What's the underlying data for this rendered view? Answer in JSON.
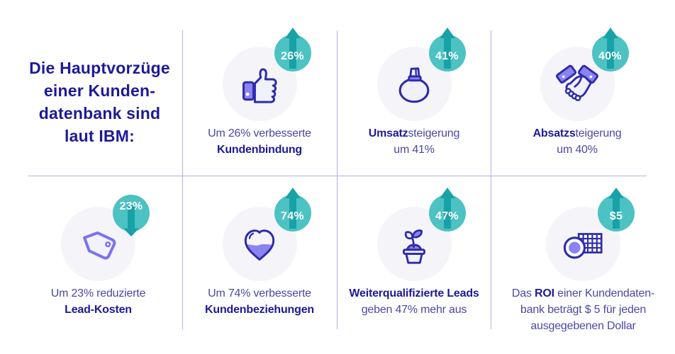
{
  "page": {
    "background": "#ffffff",
    "source_claim": "laut IBM"
  },
  "colors": {
    "title_navy": "#1d1a96",
    "caption_purple": "#4b48a5",
    "divider": "#b5b1de",
    "badge_teal": "#4cc2c3",
    "badge_arrow_teal": "#18a2a8",
    "icon_outline_navy": "#2e2caa",
    "icon_purple": "#8a83f1",
    "icon_light_fill": "#f0f1fb",
    "icon_circle_bg": "#f5f5f9",
    "tag_purple": "#7b72ee"
  },
  "title": {
    "lines": [
      "Die Hauptvorzüge",
      "einer Kunden-",
      "datenbank sind",
      "laut IBM:"
    ]
  },
  "items": [
    {
      "id": "kundenbindung",
      "icon": "thumbs-up-icon",
      "badge": {
        "value": "26%",
        "direction": "up"
      },
      "caption": [
        [
          {
            "text": "Um 26% verbesserte",
            "bold": false
          }
        ],
        [
          {
            "text": "Kundenbindung",
            "bold": true
          }
        ]
      ]
    },
    {
      "id": "umsatzsteigerung",
      "icon": "money-bag-icon",
      "badge": {
        "value": "41%",
        "direction": "up"
      },
      "caption": [
        [
          {
            "text": "Umsatz",
            "bold": true
          },
          {
            "text": "steigerung",
            "bold": false
          }
        ],
        [
          {
            "text": "um 41%",
            "bold": false
          }
        ]
      ]
    },
    {
      "id": "absatzsteigerung",
      "icon": "handshake-icon",
      "badge": {
        "value": "40%",
        "direction": "up"
      },
      "caption": [
        [
          {
            "text": "Absatzs",
            "bold": true
          },
          {
            "text": "teigerung",
            "bold": false
          }
        ],
        [
          {
            "text": "um 40%",
            "bold": false
          }
        ]
      ]
    },
    {
      "id": "lead-kosten",
      "icon": "price-tag-icon",
      "badge": {
        "value": "23%",
        "direction": "down"
      },
      "caption": [
        [
          {
            "text": "Um 23% reduzierte",
            "bold": false
          }
        ],
        [
          {
            "text": "Lead-Kosten",
            "bold": true
          }
        ]
      ]
    },
    {
      "id": "kundenbeziehungen",
      "icon": "heart-icon",
      "badge": {
        "value": "74%",
        "direction": "up"
      },
      "caption": [
        [
          {
            "text": "Um 74% verbesserte",
            "bold": false
          }
        ],
        [
          {
            "text": "Kundenbeziehungen",
            "bold": true
          }
        ]
      ]
    },
    {
      "id": "leads-ausgaben",
      "icon": "sprout-icon",
      "badge": {
        "value": "47%",
        "direction": "up"
      },
      "caption": [
        [
          {
            "text": "Weiterqualifizierte Leads",
            "bold": true
          }
        ],
        [
          {
            "text": "geben 47% mehr aus",
            "bold": false
          }
        ]
      ]
    },
    {
      "id": "roi",
      "icon": "coins-icon",
      "badge": {
        "value": "$5",
        "direction": "up"
      },
      "caption": [
        [
          {
            "text": "Das ",
            "bold": false
          },
          {
            "text": "ROI",
            "bold": true
          },
          {
            "text": " einer Kundendaten-",
            "bold": false
          }
        ],
        [
          {
            "text": "bank beträgt $ 5 für jeden",
            "bold": false
          }
        ],
        [
          {
            "text": "ausgegebenen Dollar",
            "bold": false
          }
        ]
      ]
    }
  ]
}
